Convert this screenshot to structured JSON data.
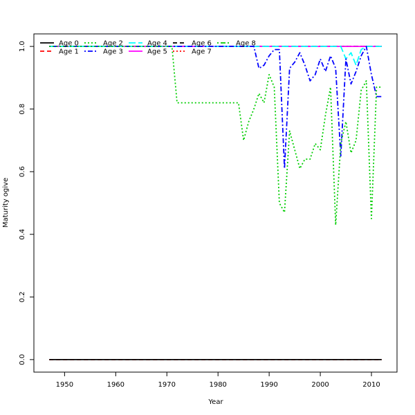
{
  "chart_data": {
    "type": "line",
    "title": "",
    "xlabel": "Year",
    "ylabel": "Maturity ogive",
    "xlim": [
      1944,
      2015
    ],
    "ylim": [
      -0.04,
      1.04
    ],
    "x_ticks": [
      1950,
      1960,
      1970,
      1980,
      1990,
      2000,
      2010
    ],
    "y_ticks": [
      0.0,
      0.2,
      0.4,
      0.6,
      0.8,
      1.0
    ],
    "grid": false,
    "legend_position": "top-left",
    "series": [
      {
        "name": "Age 0",
        "color": "#000000",
        "dash": "solid",
        "x": [
          1947,
          2012
        ],
        "values": [
          0,
          0
        ]
      },
      {
        "name": "Age 1",
        "color": "#ff0000",
        "dash": "dashed",
        "x": [
          1947,
          2012
        ],
        "values": [
          0,
          0
        ]
      },
      {
        "name": "Age 2",
        "color": "#00cd00",
        "dash": "dotted",
        "x": [
          1947,
          1970,
          1971,
          1972,
          1984,
          1985,
          1986,
          1987,
          1988,
          1989,
          1990,
          1991,
          1992,
          1993,
          1994,
          1995,
          1996,
          1997,
          1998,
          1999,
          2000,
          2001,
          2002,
          2003,
          2004,
          2005,
          2006,
          2007,
          2008,
          2009,
          2010,
          2011,
          2012
        ],
        "values": [
          1.0,
          1.0,
          1.0,
          0.82,
          0.82,
          0.7,
          0.76,
          0.8,
          0.85,
          0.82,
          0.91,
          0.87,
          0.5,
          0.47,
          0.73,
          0.67,
          0.61,
          0.64,
          0.64,
          0.69,
          0.67,
          0.78,
          0.87,
          0.43,
          0.69,
          0.76,
          0.66,
          0.7,
          0.86,
          0.89,
          0.45,
          0.87,
          0.87
        ]
      },
      {
        "name": "Age 3",
        "color": "#0000ff",
        "dash": "dotdash",
        "x": [
          1947,
          1987,
          1988,
          1989,
          1990,
          1991,
          1992,
          1993,
          1994,
          1995,
          1996,
          1997,
          1998,
          1999,
          2000,
          2001,
          2002,
          2003,
          2004,
          2005,
          2006,
          2007,
          2008,
          2009,
          2010,
          2011,
          2012
        ],
        "values": [
          1.0,
          1.0,
          0.93,
          0.94,
          0.97,
          0.99,
          0.99,
          0.61,
          0.93,
          0.95,
          0.98,
          0.94,
          0.89,
          0.91,
          0.96,
          0.92,
          0.97,
          0.93,
          0.65,
          0.96,
          0.88,
          0.92,
          0.97,
          1.0,
          0.91,
          0.84,
          0.84
        ]
      },
      {
        "name": "Age 4",
        "color": "#00ffff",
        "dash": "longdash",
        "x": [
          1947,
          2004,
          2005,
          2006,
          2007,
          2008,
          2009,
          2012
        ],
        "values": [
          1.0,
          1.0,
          0.96,
          0.98,
          0.94,
          0.99,
          1.0,
          1.0
        ]
      },
      {
        "name": "Age 5",
        "color": "#ff00ff",
        "dash": "solid",
        "x": [
          1947,
          2012
        ],
        "values": [
          1.0,
          1.0
        ]
      },
      {
        "name": "Age 6",
        "color": "#000000",
        "dash": "dashed",
        "x": [
          1947,
          2012
        ],
        "values": [
          1.0,
          1.0
        ]
      },
      {
        "name": "Age 7",
        "color": "#ff0000",
        "dash": "dotted",
        "x": [
          1947,
          2012
        ],
        "values": [
          1.0,
          1.0
        ]
      },
      {
        "name": "Age 8",
        "color": "#00cd00",
        "dash": "dotdash",
        "x": [
          1947,
          2012
        ],
        "values": [
          1.0,
          1.0
        ]
      }
    ]
  }
}
